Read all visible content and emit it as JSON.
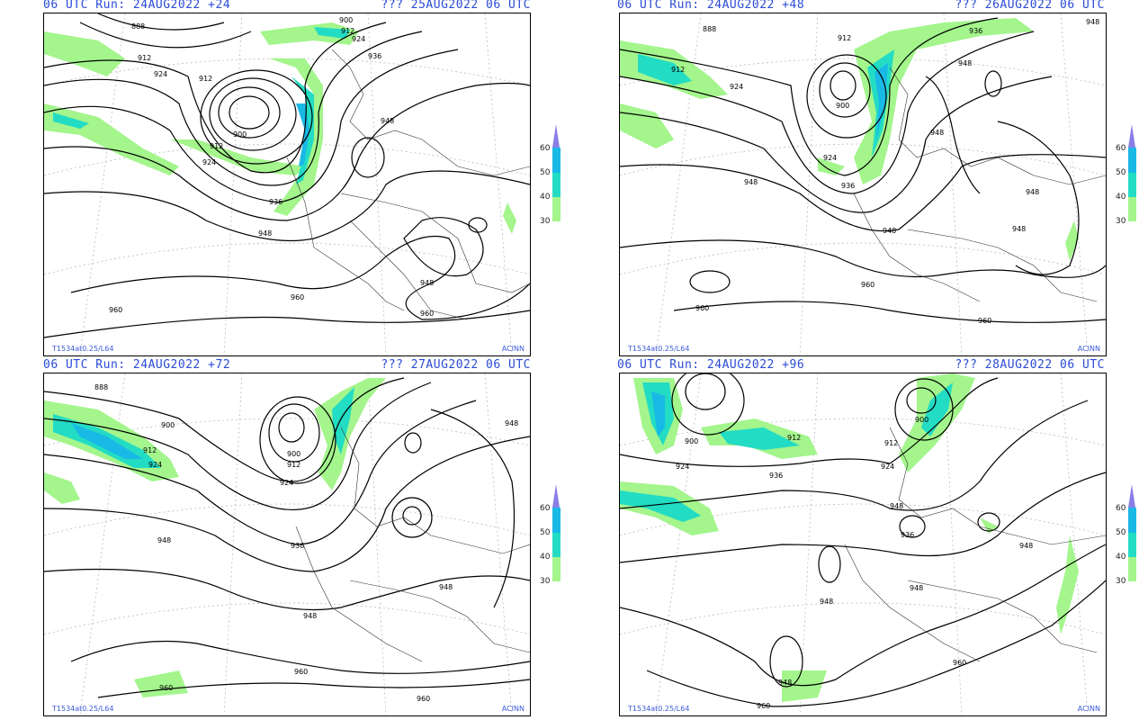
{
  "panels": [
    {
      "run": "06 UTC Run: 24AUG2022 +24",
      "valid": "??? 25AUG2022 06 UTC",
      "footer_left": "T1534at0.25/L64",
      "footer_right": "ACINN",
      "contour_labels": [
        "888",
        "912",
        "924",
        "912",
        "900",
        "912",
        "924",
        "936",
        "948",
        "960",
        "960",
        "948",
        "960",
        "936",
        "948",
        "900",
        "912",
        "924"
      ]
    },
    {
      "run": "06 UTC Run: 24AUG2022 +48",
      "valid": "??? 26AUG2022 06 UTC",
      "footer_left": "T1534at0.25/L64",
      "footer_right": "ACINN",
      "contour_labels": [
        "888",
        "912",
        "924",
        "900",
        "912",
        "936",
        "948",
        "960",
        "948",
        "960",
        "960",
        "924",
        "936",
        "948",
        "948",
        "948",
        "948",
        "948"
      ]
    },
    {
      "run": "06 UTC Run: 24AUG2022 +72",
      "valid": "??? 27AUG2022 06 UTC",
      "footer_left": "T1534at0.25/L64",
      "footer_right": "ACINN",
      "contour_labels": [
        "888",
        "900",
        "912",
        "924",
        "900",
        "912",
        "924",
        "936",
        "948",
        "948",
        "960",
        "960",
        "960",
        "948",
        "948"
      ]
    },
    {
      "run": "06 UTC Run: 24AUG2022 +96",
      "valid": "??? 28AUG2022 06 UTC",
      "footer_left": "T1534at0.25/L64",
      "footer_right": "ACINN",
      "contour_labels": [
        "900",
        "924",
        "912",
        "936",
        "912",
        "900",
        "924",
        "936",
        "948",
        "948",
        "948",
        "960",
        "948",
        "960",
        "948"
      ]
    }
  ],
  "legend": {
    "labels": [
      "60",
      "50",
      "40",
      "30"
    ],
    "colors": {
      "purple": "#8a7de6",
      "cyan": "#19b9e6",
      "teal": "#23dcc4",
      "green": "#a3f58c"
    }
  }
}
